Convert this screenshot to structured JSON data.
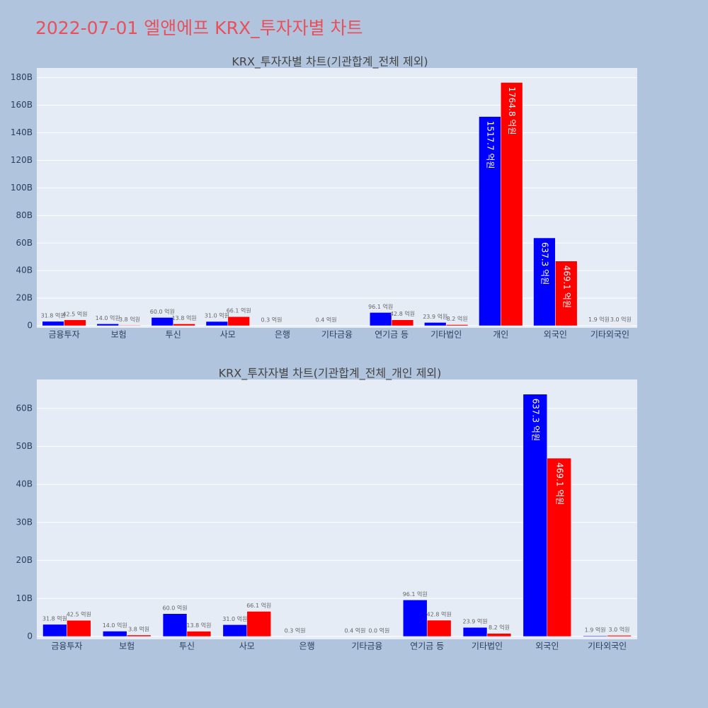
{
  "title": "2022-07-01 엘앤에프 KRX_투자자별 차트",
  "chart_data": [
    {
      "type": "bar",
      "title": "KRX_투자자별 차트(기관합계_전체 제외)",
      "categories": [
        "금융투자",
        "보험",
        "투신",
        "사모",
        "은행",
        "기타금융",
        "연기금 등",
        "기타법인",
        "개인",
        "외국인",
        "기타외국인"
      ],
      "series": [
        {
          "color": "#0000ff",
          "values": [
            3180000000,
            1400000000,
            6000000000,
            3100000000,
            30000000,
            40000000,
            9610000000,
            2390000000,
            151770000000,
            63730000000,
            190000000
          ],
          "value_labels": [
            "31.8 억원",
            "14.0 억원",
            "60.0 억원",
            "31.0 억원",
            "0.3 억원",
            "0.4 억원",
            "96.1 억원",
            "23.9 억원",
            "1517.7 억원",
            "637.3 억원",
            "1.9 억원"
          ]
        },
        {
          "color": "#ff0000",
          "values": [
            4250000000,
            380000000,
            1380000000,
            6610000000,
            null,
            null,
            4280000000,
            820000000,
            176480000000,
            46910000000,
            300000000
          ],
          "value_labels": [
            "42.5 억원",
            "3.8 억원",
            "13.8 억원",
            "66.1 억원",
            null,
            null,
            "42.8 억원",
            "8.2 억원",
            "1764.8 억원",
            "469.1 억원",
            "3.0 억원"
          ]
        }
      ],
      "ylim": [
        -1500000000,
        187000000000
      ],
      "yticks": [
        0,
        {
          "value": 20000000000,
          "label": "20B"
        },
        {
          "value": 40000000000,
          "label": "40B"
        },
        {
          "value": 60000000000,
          "label": "60B"
        },
        {
          "value": 80000000000,
          "label": "80B"
        },
        {
          "value": 100000000000,
          "label": "100B"
        },
        {
          "value": 120000000000,
          "label": "120B"
        },
        {
          "value": 140000000000,
          "label": "140B"
        },
        {
          "value": 160000000000,
          "label": "160B"
        },
        {
          "value": 180000000000,
          "label": "180B"
        }
      ],
      "grid": true
    },
    {
      "type": "bar",
      "title": "KRX_투자자별 차트(기관합계_전체_개인 제외)",
      "categories": [
        "금융투자",
        "보험",
        "투신",
        "사모",
        "은행",
        "기타금융",
        "연기금 등",
        "기타법인",
        "외국인",
        "기타외국인"
      ],
      "series": [
        {
          "color": "#0000ff",
          "values": [
            3180000000,
            1400000000,
            6000000000,
            3100000000,
            30000000,
            40000000,
            9610000000,
            2390000000,
            63730000000,
            190000000
          ],
          "value_labels": [
            "31.8 억원",
            "14.0 억원",
            "60.0 억원",
            "31.0 억원",
            "0.3 억원",
            "0.4 억원",
            "96.1 억원",
            "23.9 억원",
            "637.3 억원",
            "1.9 억원"
          ]
        },
        {
          "color": "#ff0000",
          "values": [
            4250000000,
            380000000,
            1380000000,
            6610000000,
            null,
            0,
            4280000000,
            820000000,
            46910000000,
            300000000
          ],
          "value_labels": [
            "42.5 억원",
            "3.8 억원",
            "13.8 억원",
            "66.1 억원",
            null,
            "0.0 억원",
            "42.8 억원",
            "8.2 억원",
            "469.1 억원",
            "3.0 억원"
          ]
        }
      ],
      "ylim": [
        -750000000,
        67600000000
      ],
      "yticks": [
        0,
        {
          "value": 10000000000,
          "label": "10B"
        },
        {
          "value": 20000000000,
          "label": "20B"
        },
        {
          "value": 30000000000,
          "label": "30B"
        },
        {
          "value": 40000000000,
          "label": "40B"
        },
        {
          "value": 50000000000,
          "label": "50B"
        },
        {
          "value": 60000000000,
          "label": "60B"
        }
      ],
      "grid": true
    }
  ]
}
